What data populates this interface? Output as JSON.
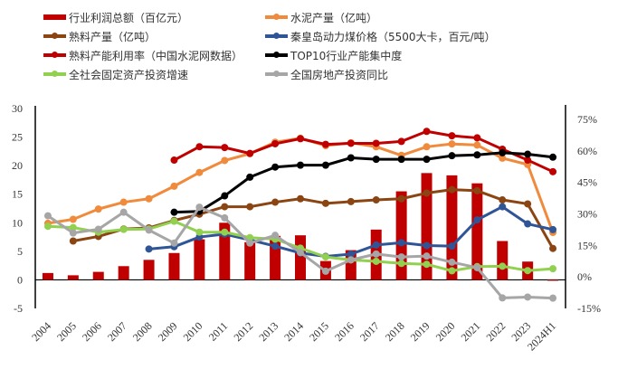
{
  "chart_data": {
    "type": "bar+line",
    "title": "",
    "categories": [
      "2004",
      "2005",
      "2006",
      "2007",
      "2008",
      "2009",
      "2010",
      "2011",
      "2012",
      "2013",
      "2014",
      "2015",
      "2016",
      "2017",
      "2018",
      "2019",
      "2020",
      "2021",
      "2022",
      "2023",
      "2024H1"
    ],
    "left_axis": {
      "ylim": [
        -5,
        30
      ],
      "ticks": [
        "-5",
        "0",
        "5",
        "10",
        "15",
        "20",
        "25",
        "30"
      ],
      "tick_values": [
        -5,
        0,
        5,
        10,
        15,
        20,
        25,
        30
      ]
    },
    "right_axis": {
      "ylim": [
        -15,
        75
      ],
      "ticks": [
        "-15%",
        "0%",
        "15%",
        "30%",
        "45%",
        "60%",
        "75%"
      ],
      "tick_values": [
        -15,
        0,
        15,
        30,
        45,
        60,
        75
      ]
    },
    "grid": false,
    "legend_position": "top",
    "series": [
      {
        "name": "行业利润总额（百亿元）",
        "type": "bar",
        "axis": "left",
        "color": "#c00000",
        "values": [
          1.2,
          0.8,
          1.4,
          2.4,
          3.5,
          4.7,
          7.1,
          10.0,
          6.6,
          7.7,
          7.8,
          3.3,
          5.2,
          8.8,
          15.5,
          18.7,
          18.3,
          16.9,
          6.8,
          3.2,
          -0.1
        ]
      },
      {
        "name": "水泥产量（亿吨）",
        "type": "line",
        "axis": "left",
        "color": "#f08a3c",
        "values": [
          9.9,
          10.6,
          12.4,
          13.6,
          14.2,
          16.4,
          18.8,
          20.9,
          22.1,
          24.1,
          24.8,
          23.5,
          24.0,
          23.3,
          21.8,
          23.3,
          23.8,
          23.6,
          21.3,
          20.2,
          8.3
        ]
      },
      {
        "name": "熟料产量（亿吨）",
        "type": "line",
        "axis": "left",
        "color": "#8b4513",
        "values": [
          null,
          6.8,
          7.6,
          8.9,
          9.1,
          10.4,
          11.5,
          12.8,
          12.8,
          13.6,
          14.2,
          13.4,
          13.7,
          14.0,
          14.2,
          15.2,
          15.8,
          15.6,
          14.0,
          13.3,
          5.5
        ]
      },
      {
        "name": "秦皇岛动力煤价格（5500大卡，百元/吨）",
        "type": "line",
        "axis": "left",
        "color": "#2f5597",
        "values": [
          null,
          null,
          null,
          null,
          5.4,
          5.8,
          7.5,
          8.0,
          7.0,
          5.9,
          4.7,
          4.1,
          4.5,
          6.1,
          6.5,
          6.0,
          5.9,
          10.5,
          12.8,
          9.8,
          8.8
        ]
      },
      {
        "name": "熟料产能利用率（中国水泥网数据）",
        "type": "line",
        "axis": "right",
        "color": "#c00000",
        "values": [
          null,
          null,
          null,
          null,
          null,
          55.6,
          62.0,
          61.6,
          58.8,
          63.4,
          65.8,
          63.1,
          63.6,
          63.6,
          64.5,
          69.3,
          67.2,
          66.2,
          60.8,
          55.6,
          50.1
        ]
      },
      {
        "name": "TOP10行业产能集中度",
        "type": "line",
        "axis": "right",
        "color": "#000000",
        "values": [
          null,
          null,
          null,
          null,
          null,
          30.8,
          31.2,
          38.6,
          47.5,
          52.3,
          53.2,
          53.2,
          56.7,
          56.0,
          56.0,
          56.0,
          57.7,
          58.1,
          59.1,
          58.4,
          57.0
        ]
      },
      {
        "name": "全社会固定资产投资增速",
        "type": "line",
        "axis": "right",
        "color": "#92d050",
        "values": [
          24.1,
          23.5,
          21.3,
          22.6,
          22.8,
          26.5,
          21.3,
          21.3,
          18.7,
          18.0,
          13.7,
          9.5,
          8.1,
          7.4,
          6.4,
          6.0,
          2.9,
          4.9,
          5.1,
          3.0,
          3.9
        ]
      },
      {
        "name": "全国房地产投资同比",
        "type": "line",
        "axis": "right",
        "color": "#a6a6a6",
        "values": [
          29.1,
          20.9,
          22.7,
          30.8,
          22.3,
          16.1,
          33.2,
          28.1,
          16.1,
          19.8,
          11.6,
          2.7,
          8.1,
          10.9,
          9.5,
          9.9,
          7.0,
          4.4,
          -10.0,
          -9.6,
          -10.1
        ]
      }
    ]
  }
}
